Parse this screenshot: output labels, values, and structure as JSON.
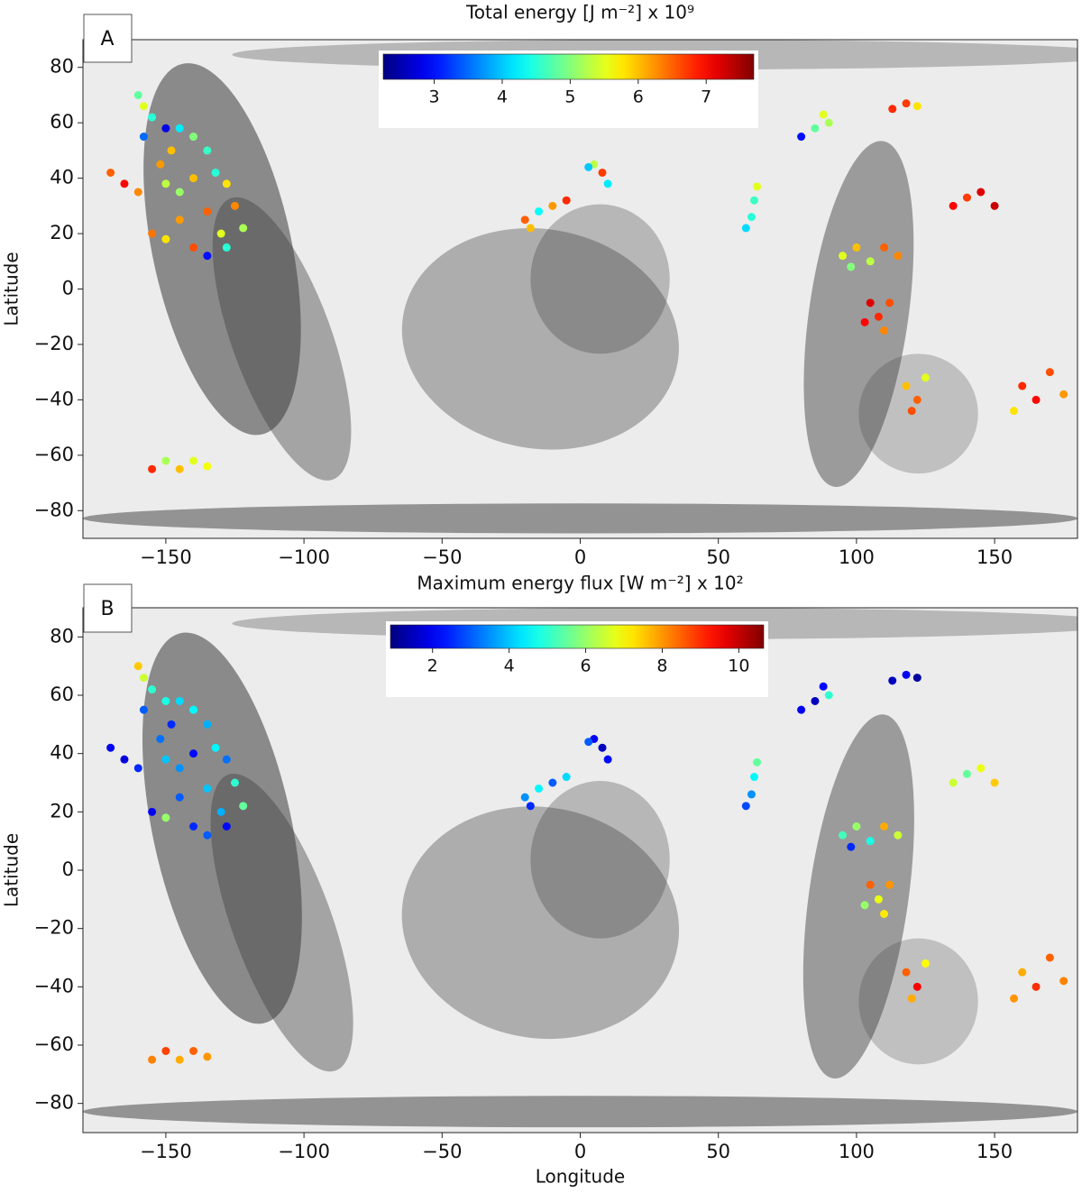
{
  "chart_data": [
    {
      "type": "scatter",
      "panel_label": "A",
      "title": "Total energy [J m⁻²] x 10⁹",
      "ylabel": "Latitude",
      "xlim": [
        -180,
        180
      ],
      "ylim": [
        -90,
        90
      ],
      "xticks": [
        {
          "value": -150,
          "label": "−150"
        },
        {
          "value": -100,
          "label": "−100"
        },
        {
          "value": -50,
          "label": "−50"
        },
        0,
        50,
        100,
        150
      ],
      "yticks": [
        {
          "value": -80,
          "label": "−80"
        },
        {
          "value": -60,
          "label": "−60"
        },
        {
          "value": -40,
          "label": "−40"
        },
        {
          "value": -20,
          "label": "−20"
        },
        0,
        20,
        40,
        60,
        80
      ],
      "colorbar": {
        "colormap": "jet",
        "clim": [
          2.25,
          7.7
        ],
        "ticks": [
          3,
          4,
          5,
          6,
          7
        ]
      },
      "x": [
        -160,
        -158,
        -155,
        -150,
        -158,
        -145,
        -140,
        -135,
        -148,
        -152,
        -170,
        -165,
        -160,
        -150,
        -145,
        -140,
        -132,
        -128,
        -125,
        -135,
        -145,
        -155,
        -150,
        -140,
        -130,
        -122,
        -135,
        -128,
        -155,
        -150,
        -145,
        -140,
        -135,
        -20,
        -15,
        -10,
        -5,
        -18,
        5,
        8,
        10,
        3,
        60,
        62,
        63,
        64,
        80,
        85,
        90,
        88,
        113,
        118,
        122,
        135,
        140,
        145,
        150,
        95,
        100,
        105,
        110,
        115,
        98,
        105,
        108,
        110,
        103,
        112,
        118,
        122,
        125,
        120,
        160,
        165,
        170,
        175,
        157
      ],
      "y": [
        70,
        66,
        62,
        58,
        55,
        58,
        55,
        50,
        50,
        45,
        42,
        38,
        35,
        38,
        35,
        40,
        42,
        38,
        30,
        28,
        25,
        20,
        18,
        15,
        20,
        22,
        12,
        15,
        -65,
        -62,
        -65,
        -62,
        -64,
        25,
        28,
        30,
        32,
        22,
        45,
        42,
        38,
        44,
        22,
        26,
        32,
        37,
        55,
        58,
        60,
        63,
        65,
        67,
        66,
        30,
        33,
        35,
        30,
        12,
        15,
        10,
        15,
        12,
        8,
        -5,
        -10,
        -15,
        -12,
        -5,
        -35,
        -40,
        -32,
        -44,
        -35,
        -40,
        -30,
        -38,
        -44
      ],
      "c": [
        4.8,
        5.5,
        4.5,
        2.8,
        3.5,
        4.2,
        5.0,
        4.6,
        6.0,
        6.2,
        6.5,
        7.0,
        6.3,
        5.3,
        5.1,
        6.0,
        4.5,
        5.8,
        6.3,
        6.5,
        6.2,
        6.4,
        5.8,
        6.6,
        5.5,
        5.2,
        3.0,
        4.5,
        6.8,
        5.2,
        6.0,
        5.5,
        5.6,
        6.5,
        4.3,
        6.2,
        6.8,
        6.0,
        5.3,
        6.7,
        4.2,
        4.0,
        4.1,
        4.5,
        4.6,
        5.5,
        3.0,
        4.8,
        5.2,
        5.5,
        6.8,
        6.7,
        5.8,
        7.0,
        6.7,
        7.2,
        7.3,
        5.5,
        6.0,
        5.3,
        6.5,
        6.3,
        5.0,
        7.2,
        6.8,
        6.3,
        7.0,
        6.6,
        6.0,
        6.5,
        5.5,
        6.6,
        6.8,
        7.0,
        6.6,
        6.2,
        5.8
      ]
    },
    {
      "type": "scatter",
      "panel_label": "B",
      "title": "Maximum energy flux [W m⁻²] x 10²",
      "xlabel": "Longitude",
      "ylabel": "Latitude",
      "xlim": [
        -180,
        180
      ],
      "ylim": [
        -90,
        90
      ],
      "xticks": [
        {
          "value": -150,
          "label": "−150"
        },
        {
          "value": -100,
          "label": "−100"
        },
        {
          "value": -50,
          "label": "−50"
        },
        0,
        50,
        100,
        150
      ],
      "yticks": [
        {
          "value": -80,
          "label": "−80"
        },
        {
          "value": -60,
          "label": "−60"
        },
        {
          "value": -40,
          "label": "−40"
        },
        {
          "value": -20,
          "label": "−20"
        },
        0,
        20,
        40,
        60,
        80
      ],
      "colorbar": {
        "colormap": "jet",
        "clim": [
          0.9,
          10.65
        ],
        "ticks": [
          2,
          4,
          6,
          8,
          10
        ]
      },
      "x": [
        -160,
        -158,
        -155,
        -150,
        -158,
        -145,
        -140,
        -135,
        -148,
        -152,
        -170,
        -165,
        -160,
        -150,
        -145,
        -140,
        -132,
        -128,
        -125,
        -135,
        -145,
        -155,
        -150,
        -140,
        -130,
        -122,
        -135,
        -128,
        -155,
        -150,
        -145,
        -140,
        -135,
        -20,
        -15,
        -10,
        -5,
        -18,
        5,
        8,
        10,
        3,
        60,
        62,
        63,
        64,
        80,
        85,
        90,
        88,
        113,
        118,
        122,
        135,
        140,
        145,
        150,
        95,
        100,
        105,
        110,
        115,
        98,
        105,
        108,
        110,
        103,
        112,
        118,
        122,
        125,
        120,
        160,
        165,
        170,
        175,
        157
      ],
      "y": [
        70,
        66,
        62,
        58,
        55,
        58,
        55,
        50,
        50,
        45,
        42,
        38,
        35,
        38,
        35,
        40,
        42,
        38,
        30,
        28,
        25,
        20,
        18,
        15,
        20,
        22,
        12,
        15,
        -65,
        -62,
        -65,
        -62,
        -64,
        25,
        28,
        30,
        32,
        22,
        45,
        42,
        38,
        44,
        22,
        26,
        32,
        37,
        55,
        58,
        60,
        63,
        65,
        67,
        66,
        30,
        33,
        35,
        30,
        12,
        15,
        10,
        15,
        12,
        8,
        -5,
        -10,
        -15,
        -12,
        -5,
        -35,
        -40,
        -32,
        -44,
        -35,
        -40,
        -30,
        -38,
        -44
      ],
      "c": [
        7.5,
        6.5,
        5.0,
        4.8,
        3.0,
        4.2,
        4.5,
        3.8,
        2.5,
        3.2,
        2.0,
        1.8,
        2.5,
        4.0,
        3.5,
        2.2,
        4.5,
        3.2,
        5.0,
        4.0,
        3.0,
        2.0,
        6.0,
        2.5,
        3.8,
        5.5,
        3.0,
        2.2,
        8.2,
        8.8,
        7.8,
        8.5,
        8.0,
        3.5,
        4.5,
        3.0,
        4.2,
        2.5,
        2.0,
        1.5,
        2.2,
        3.0,
        2.8,
        3.5,
        4.5,
        5.5,
        2.0,
        1.5,
        5.0,
        2.2,
        1.5,
        2.0,
        1.2,
        6.5,
        5.5,
        6.8,
        7.5,
        5.2,
        6.0,
        4.8,
        7.8,
        6.5,
        2.5,
        8.5,
        6.8,
        7.2,
        6.0,
        8.0,
        8.5,
        9.5,
        7.0,
        7.8,
        7.8,
        9.0,
        8.5,
        8.2,
        8.0
      ]
    }
  ]
}
